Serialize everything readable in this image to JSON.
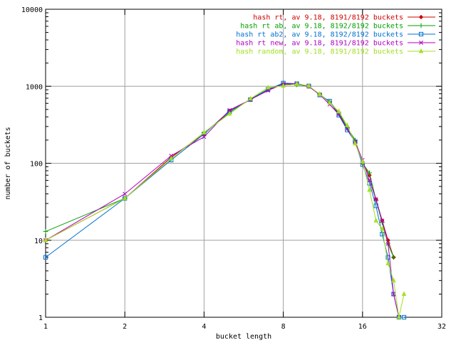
{
  "chart_data": {
    "type": "line",
    "title": "",
    "xlabel": "bucket length",
    "ylabel": "number of buckets",
    "x_scale": "log2",
    "y_scale": "log10",
    "xlim": [
      1,
      32
    ],
    "ylim": [
      1,
      10000
    ],
    "x_ticks": [
      1,
      2,
      4,
      8,
      16,
      32
    ],
    "x_tick_labels": [
      "1",
      "2",
      "4",
      "8",
      "16",
      "32"
    ],
    "y_ticks": [
      1,
      10,
      100,
      1000,
      10000
    ],
    "y_tick_labels": [
      "1",
      "10",
      "100",
      "1000",
      "10000"
    ],
    "grid": true,
    "legend_position": "top-right",
    "series": [
      {
        "name": "hash rt, av 9.18, 8191/8192 buckets",
        "color": "#d00000",
        "marker": "diamond",
        "points": [
          [
            1,
            10
          ],
          [
            2,
            35
          ],
          [
            3,
            120
          ],
          [
            4,
            240
          ],
          [
            5,
            480
          ],
          [
            6,
            670
          ],
          [
            7,
            900
          ],
          [
            8,
            1060
          ],
          [
            9,
            1060
          ],
          [
            10,
            990
          ],
          [
            11,
            790
          ],
          [
            12,
            620
          ],
          [
            13,
            440
          ],
          [
            14,
            290
          ],
          [
            15,
            190
          ],
          [
            16,
            100
          ],
          [
            17,
            70
          ],
          [
            18,
            34
          ],
          [
            19,
            18
          ],
          [
            20,
            10
          ],
          [
            21,
            6
          ]
        ]
      },
      {
        "name": "hash rt ab, av 9.18, 8192/8192 buckets",
        "color": "#00a000",
        "marker": "plus",
        "points": [
          [
            1,
            13
          ],
          [
            2,
            35
          ],
          [
            3,
            115
          ],
          [
            4,
            250
          ],
          [
            5,
            450
          ],
          [
            6,
            680
          ],
          [
            7,
            920
          ],
          [
            8,
            1080
          ],
          [
            9,
            1050
          ],
          [
            10,
            1000
          ],
          [
            11,
            780
          ],
          [
            12,
            630
          ],
          [
            13,
            460
          ],
          [
            14,
            290
          ],
          [
            15,
            200
          ],
          [
            16,
            100
          ],
          [
            17,
            75
          ],
          [
            18,
            33
          ],
          [
            19,
            17
          ],
          [
            20,
            9
          ],
          [
            21,
            6
          ]
        ]
      },
      {
        "name": "hash rt ab2, av 9.18, 8192/8192 buckets",
        "color": "#0070d0",
        "marker": "square",
        "points": [
          [
            1,
            6
          ],
          [
            2,
            35
          ],
          [
            3,
            110
          ],
          [
            4,
            240
          ],
          [
            5,
            470
          ],
          [
            6,
            670
          ],
          [
            7,
            910
          ],
          [
            8,
            1100
          ],
          [
            9,
            1080
          ],
          [
            10,
            1010
          ],
          [
            11,
            770
          ],
          [
            12,
            640
          ],
          [
            13,
            420
          ],
          [
            14,
            270
          ],
          [
            15,
            190
          ],
          [
            16,
            96
          ],
          [
            17,
            55
          ],
          [
            18,
            28
          ],
          [
            19,
            12
          ],
          [
            20,
            6
          ],
          [
            21,
            2
          ],
          [
            22,
            1
          ],
          [
            23,
            1
          ]
        ]
      },
      {
        "name": "hash rt new, av 9.18, 8191/8192 buckets",
        "color": "#b000c0",
        "marker": "x",
        "points": [
          [
            1,
            10
          ],
          [
            2,
            40
          ],
          [
            3,
            125
          ],
          [
            4,
            220
          ],
          [
            5,
            490
          ],
          [
            6,
            670
          ],
          [
            7,
            880
          ],
          [
            8,
            1070
          ],
          [
            9,
            1080
          ],
          [
            10,
            990
          ],
          [
            11,
            780
          ],
          [
            12,
            580
          ],
          [
            13,
            430
          ],
          [
            14,
            280
          ],
          [
            15,
            190
          ],
          [
            16,
            110
          ],
          [
            17,
            60
          ],
          [
            18,
            34
          ],
          [
            19,
            18
          ],
          [
            20,
            9
          ],
          [
            21,
            2
          ],
          [
            22,
            1
          ]
        ]
      },
      {
        "name": "hash random, av 9.18, 8191/8192 buckets",
        "color": "#a0e020",
        "marker": "triangle",
        "points": [
          [
            1,
            10
          ],
          [
            2,
            35
          ],
          [
            3,
            115
          ],
          [
            4,
            250
          ],
          [
            5,
            440
          ],
          [
            6,
            690
          ],
          [
            7,
            960
          ],
          [
            8,
            1010
          ],
          [
            9,
            1070
          ],
          [
            10,
            1010
          ],
          [
            11,
            790
          ],
          [
            12,
            610
          ],
          [
            13,
            470
          ],
          [
            14,
            310
          ],
          [
            15,
            180
          ],
          [
            16,
            105
          ],
          [
            17,
            45
          ],
          [
            18,
            18
          ],
          [
            19,
            14
          ],
          [
            20,
            5
          ],
          [
            21,
            3
          ],
          [
            22,
            1
          ],
          [
            23,
            2
          ]
        ]
      }
    ]
  }
}
